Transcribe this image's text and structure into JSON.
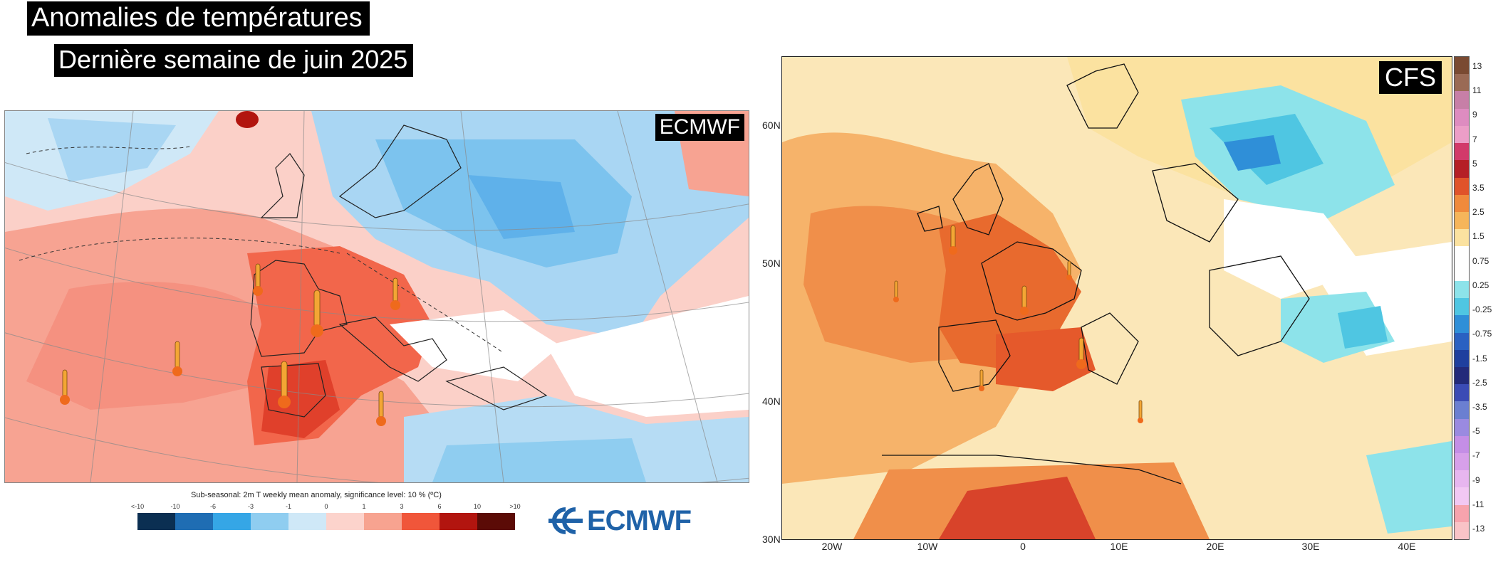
{
  "title": "Anomalies de températures",
  "subtitle": "Dernière semaine de juin 2025",
  "left_panel": {
    "badge": "ECMWF",
    "legend_title": "Sub-seasonal: 2m T weekly mean anomaly, significance level: 10 % (ºC)",
    "legend_ticks": [
      "<-10",
      "-10",
      "-6",
      "-3",
      "-1",
      "0",
      "1",
      "3",
      "6",
      "10",
      ">10"
    ],
    "legend_colors": [
      "#0b2f52",
      "#1f6db3",
      "#35a6e6",
      "#8fcdf0",
      "#cfe8f7",
      "#fcd3cc",
      "#f7a390",
      "#f0563a",
      "#b2150f",
      "#5b0b06"
    ],
    "logo_text": "ECMWF"
  },
  "right_panel": {
    "badge": "CFS",
    "lat_labels": [
      "60N",
      "50N",
      "40N",
      "30N"
    ],
    "lon_labels": [
      "20W",
      "10W",
      "0",
      "10E",
      "20E",
      "30E",
      "40E"
    ],
    "colorbar_labels": [
      "13",
      "11",
      "9",
      "7",
      "5",
      "3.5",
      "2.5",
      "1.5",
      "0.75",
      "0.25",
      "-0.25",
      "-0.75",
      "-1.5",
      "-2.5",
      "-3.5",
      "-5",
      "-7",
      "-9",
      "-11",
      "-13"
    ],
    "colorbar_colors": [
      "#7a4a32",
      "#9a6a55",
      "#c77fa7",
      "#de8cc0",
      "#ec9ec7",
      "#d23a6a",
      "#b51f26",
      "#e0532a",
      "#f08a3c",
      "#f6b55a",
      "#fbe2a0",
      "#ffffff",
      "#ffffff",
      "#8de3ea",
      "#4fc6e2",
      "#2f8fd8",
      "#2a61c2",
      "#1f3f9e",
      "#232a7a",
      "#3b4bb5",
      "#6b7fd1",
      "#9a8ae0",
      "#c48ee6",
      "#d7a0ea",
      "#e7b6ef",
      "#f2c8f3",
      "#f7a3ad",
      "#f9c3c7"
    ]
  }
}
